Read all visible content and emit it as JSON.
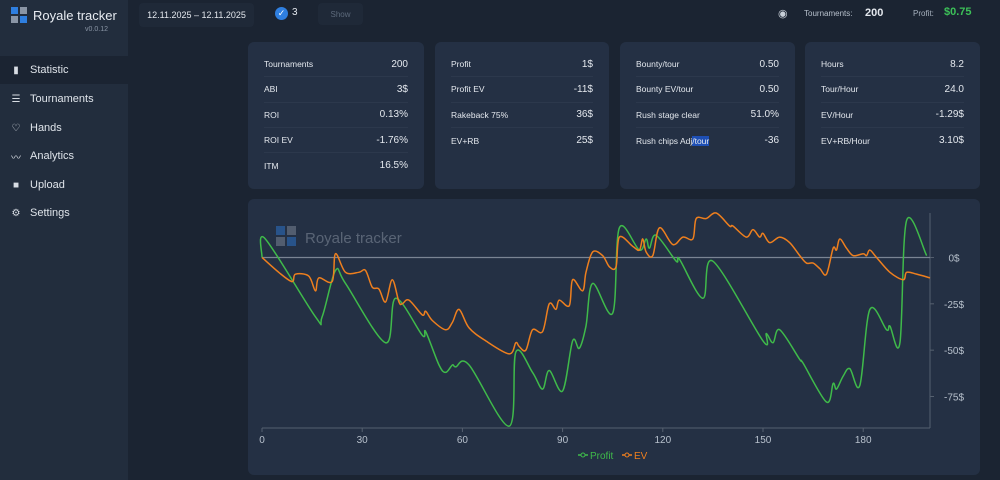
{
  "app": {
    "name": "Royale tracker",
    "version": "v0.0.12"
  },
  "sidebar": {
    "items": [
      {
        "label": "Statistic",
        "icon": "bar-chart-icon",
        "active": true
      },
      {
        "label": "Tournaments",
        "icon": "list-icon"
      },
      {
        "label": "Hands",
        "icon": "cards-icon"
      },
      {
        "label": "Analytics",
        "icon": "trend-icon"
      },
      {
        "label": "Upload",
        "icon": "upload-folder-icon"
      },
      {
        "label": "Settings",
        "icon": "gear-icon"
      }
    ]
  },
  "header": {
    "date_range": "12.11.2025 – 12.11.2025",
    "selected_count": "3",
    "show_label": "Show",
    "tournaments_label": "Tournaments:",
    "tournaments_value": "200",
    "profit_label": "Profit:",
    "profit_value": "$0.75",
    "profit_color": "#3cc058"
  },
  "cards": [
    {
      "rows": [
        {
          "label": "Tournaments",
          "value": "200"
        },
        {
          "label": "ABI",
          "value": "3$"
        },
        {
          "label": "ROI",
          "value": "0.13%"
        },
        {
          "label": "ROI EV",
          "value": "-1.76%"
        },
        {
          "label": "ITM",
          "value": "16.5%"
        }
      ]
    },
    {
      "rows": [
        {
          "label": "Profit",
          "value": "1$"
        },
        {
          "label": "Profit EV",
          "value": "-11$"
        },
        {
          "label": "Rakeback 75%",
          "value": "36$"
        },
        {
          "label": "EV+RB",
          "value": "25$"
        }
      ]
    },
    {
      "rows": [
        {
          "label": "Bounty/tour",
          "value": "0.50"
        },
        {
          "label": "Bounty EV/tour",
          "value": "0.50"
        },
        {
          "label": "Rush stage clear",
          "value": "51.0%"
        },
        {
          "label": "Rush chips Adj/tour",
          "value": "-36"
        }
      ]
    },
    {
      "rows": [
        {
          "label": "Hours",
          "value": "8.2"
        },
        {
          "label": "Tour/Hour",
          "value": "24.0"
        },
        {
          "label": "EV/Hour",
          "value": "-1.29$"
        },
        {
          "label": "EV+RB/Hour",
          "value": "3.10$"
        }
      ]
    }
  ],
  "chart_data": {
    "type": "line",
    "watermark": "Royale tracker",
    "xlim": [
      0,
      200
    ],
    "ylim": [
      -92,
      24
    ],
    "x_ticks": [
      "0",
      "30",
      "60",
      "90",
      "120",
      "150",
      "180"
    ],
    "y_ticks": [
      "0$",
      "-25$",
      "-50$",
      "-75$"
    ],
    "legend_position": "bottom",
    "series": [
      {
        "name": "Profit",
        "color": "#3fba4a",
        "points": [
          [
            0,
            0
          ],
          [
            1,
            10
          ],
          [
            16,
            -32
          ],
          [
            18,
            -32
          ],
          [
            22,
            -7
          ],
          [
            25,
            -14
          ],
          [
            37,
            -46
          ],
          [
            40,
            -22
          ],
          [
            48,
            -42
          ],
          [
            49,
            -40
          ],
          [
            53,
            -58
          ],
          [
            55,
            -62
          ],
          [
            57,
            -58
          ],
          [
            58,
            -59
          ],
          [
            62,
            -58
          ],
          [
            74,
            -91
          ],
          [
            76,
            -51
          ],
          [
            81,
            -62
          ],
          [
            84,
            -71
          ],
          [
            86,
            -61
          ],
          [
            90,
            -72
          ],
          [
            93,
            -45
          ],
          [
            95,
            -49
          ],
          [
            97,
            -37
          ],
          [
            99,
            -14
          ],
          [
            105,
            -30
          ],
          [
            107,
            16
          ],
          [
            113,
            4
          ],
          [
            115,
            10
          ],
          [
            116,
            5
          ],
          [
            118,
            12
          ],
          [
            124,
            -2
          ],
          [
            125,
            -1
          ],
          [
            132,
            -22
          ],
          [
            135,
            -2
          ],
          [
            150,
            -45
          ],
          [
            151,
            -41
          ],
          [
            153,
            -46
          ],
          [
            155,
            -39
          ],
          [
            161,
            -55
          ],
          [
            162,
            -57
          ],
          [
            169,
            -78
          ],
          [
            171,
            -68
          ],
          [
            172,
            -71
          ],
          [
            174,
            -64
          ],
          [
            176,
            -60
          ],
          [
            179,
            -69
          ],
          [
            182,
            -28
          ],
          [
            187,
            -39
          ],
          [
            188,
            -37
          ],
          [
            191,
            -46
          ],
          [
            193,
            20
          ],
          [
            199,
            1
          ]
        ]
      },
      {
        "name": "EV",
        "color": "#ee7f1e",
        "points": [
          [
            0,
            0
          ],
          [
            5,
            -8
          ],
          [
            9,
            -13
          ],
          [
            10,
            -9
          ],
          [
            14,
            -10
          ],
          [
            16,
            -18
          ],
          [
            17,
            -11
          ],
          [
            21,
            -13
          ],
          [
            22,
            2
          ],
          [
            25,
            -8
          ],
          [
            29,
            -8
          ],
          [
            31,
            -7
          ],
          [
            33,
            -16
          ],
          [
            35,
            -17
          ],
          [
            37,
            -24
          ],
          [
            39,
            -12
          ],
          [
            41,
            -24
          ],
          [
            42,
            -25
          ],
          [
            44,
            -23
          ],
          [
            48,
            -31
          ],
          [
            49,
            -29
          ],
          [
            51,
            -34
          ],
          [
            55,
            -39
          ],
          [
            57,
            -35
          ],
          [
            59,
            -28
          ],
          [
            62,
            -38
          ],
          [
            67,
            -45
          ],
          [
            74,
            -52
          ],
          [
            76,
            -46
          ],
          [
            77,
            -48
          ],
          [
            79,
            -50
          ],
          [
            81,
            -39
          ],
          [
            84,
            -40
          ],
          [
            86,
            -25
          ],
          [
            88,
            -28
          ],
          [
            89,
            -23
          ],
          [
            92,
            -26
          ],
          [
            93,
            -12
          ],
          [
            96,
            -18
          ],
          [
            97,
            -8
          ],
          [
            99,
            3
          ],
          [
            102,
            1
          ],
          [
            104,
            -5
          ],
          [
            106,
            -5
          ],
          [
            107,
            11
          ],
          [
            111,
            6
          ],
          [
            113,
            4
          ],
          [
            114,
            10
          ],
          [
            115,
            3
          ],
          [
            117,
            1
          ],
          [
            119,
            16
          ],
          [
            123,
            7
          ],
          [
            126,
            11
          ],
          [
            129,
            10
          ],
          [
            130,
            21
          ],
          [
            133,
            21
          ],
          [
            136,
            24
          ],
          [
            140,
            17
          ],
          [
            141,
            17
          ],
          [
            145,
            11
          ],
          [
            147,
            15
          ],
          [
            149,
            11
          ],
          [
            150,
            13
          ],
          [
            152,
            8
          ],
          [
            155,
            11
          ],
          [
            158,
            8
          ],
          [
            161,
            1
          ],
          [
            163,
            -3
          ],
          [
            165,
            -3
          ],
          [
            167,
            -6
          ],
          [
            169,
            -9
          ],
          [
            171,
            5
          ],
          [
            172,
            4
          ],
          [
            173,
            10
          ],
          [
            175,
            5
          ],
          [
            177,
            1
          ],
          [
            180,
            2
          ],
          [
            181,
            1
          ],
          [
            182,
            4
          ],
          [
            184,
            0
          ],
          [
            188,
            -8
          ],
          [
            192,
            -12
          ],
          [
            193,
            -8
          ],
          [
            196,
            -9
          ],
          [
            200,
            -11
          ]
        ]
      }
    ]
  }
}
